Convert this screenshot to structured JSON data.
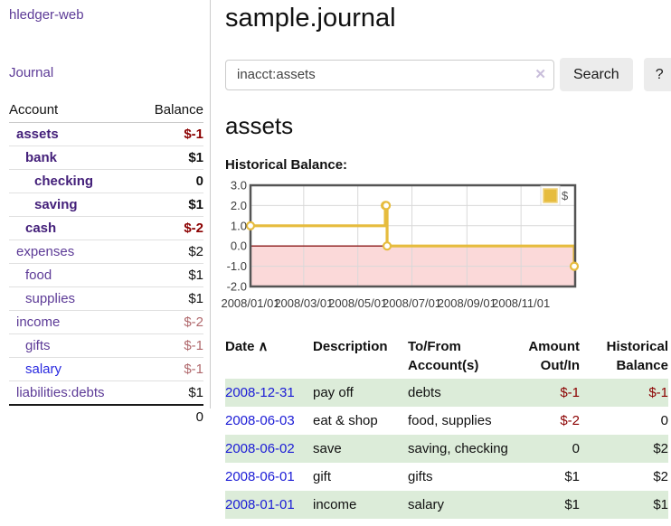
{
  "app": {
    "brand": "hledger-web",
    "nav_journal": "Journal"
  },
  "sidebar": {
    "columns": {
      "account": "Account",
      "balance": "Balance"
    },
    "accounts": [
      {
        "name": "assets",
        "indent": 0,
        "bold": true,
        "blue": false,
        "balance": "$-1",
        "balance_style": "bold-neg"
      },
      {
        "name": "bank",
        "indent": 1,
        "bold": true,
        "blue": false,
        "balance": "$1",
        "balance_style": "bold"
      },
      {
        "name": "checking",
        "indent": 2,
        "bold": true,
        "blue": false,
        "balance": "0",
        "balance_style": "bold"
      },
      {
        "name": "saving",
        "indent": 2,
        "bold": true,
        "blue": false,
        "balance": "$1",
        "balance_style": "bold"
      },
      {
        "name": "cash",
        "indent": 1,
        "bold": true,
        "blue": false,
        "balance": "$-2",
        "balance_style": "bold-neg"
      },
      {
        "name": "expenses",
        "indent": 0,
        "bold": false,
        "blue": false,
        "balance": "$2",
        "balance_style": "plain"
      },
      {
        "name": "food",
        "indent": 1,
        "bold": false,
        "blue": false,
        "balance": "$1",
        "balance_style": "plain"
      },
      {
        "name": "supplies",
        "indent": 1,
        "bold": false,
        "blue": false,
        "balance": "$1",
        "balance_style": "plain"
      },
      {
        "name": "income",
        "indent": 0,
        "bold": false,
        "blue": false,
        "balance": "$-2",
        "balance_style": "muted-neg"
      },
      {
        "name": "gifts",
        "indent": 1,
        "bold": false,
        "blue": false,
        "balance": "$-1",
        "balance_style": "muted-neg"
      },
      {
        "name": "salary",
        "indent": 1,
        "bold": false,
        "blue": true,
        "balance": "$-1",
        "balance_style": "muted-neg"
      },
      {
        "name": "liabilities:debts",
        "indent": 0,
        "bold": false,
        "blue": false,
        "balance": "$1",
        "balance_style": "plain"
      }
    ],
    "total": "0"
  },
  "header": {
    "title": "sample.journal"
  },
  "search": {
    "value": "inacct:assets",
    "clear_icon": "✕",
    "button_label": "Search",
    "help_label": "?"
  },
  "account_page": {
    "heading": "assets",
    "chart_label": "Historical Balance:"
  },
  "chart_data": {
    "type": "line",
    "title": "Historical Balance:",
    "series": [
      {
        "name": "$",
        "color": "#e6bc3e",
        "points": [
          [
            "2008-01-01",
            1
          ],
          [
            "2008-06-01",
            2
          ],
          [
            "2008-06-02",
            2
          ],
          [
            "2008-06-03",
            0
          ],
          [
            "2008-12-31",
            -1
          ]
        ]
      }
    ],
    "steps": true,
    "x_ticks": [
      "2008/01/01",
      "2008/03/01",
      "2008/05/01",
      "2008/07/01",
      "2008/09/01",
      "2008/11/01"
    ],
    "y_ticks": [
      3.0,
      2.0,
      1.0,
      0.0,
      -1.0,
      -2.0
    ],
    "xlim": [
      "2008/01/01",
      "2009/01/01"
    ],
    "ylim": [
      -2,
      3
    ],
    "grid": true,
    "negative_region_color": "#fbd9d9",
    "zero_line_color": "#8b1a1a",
    "legend": {
      "label": "$",
      "position": "top-right"
    }
  },
  "register": {
    "headers": {
      "date": "Date",
      "sort_icon": "∧",
      "description": "Description",
      "accounts": "To/From Account(s)",
      "amount": "Amount Out/In",
      "balance": "Historical Balance"
    },
    "rows": [
      {
        "date": "2008-12-31",
        "description": "pay off",
        "accounts": "debts",
        "amount": "$-1",
        "amount_neg": true,
        "balance": "$-1",
        "balance_neg": true
      },
      {
        "date": "2008-06-03",
        "description": "eat & shop",
        "accounts": "food, supplies",
        "amount": "$-2",
        "amount_neg": true,
        "balance": "0",
        "balance_neg": false
      },
      {
        "date": "2008-06-02",
        "description": "save",
        "accounts": "saving, checking",
        "amount": "0",
        "amount_neg": false,
        "balance": "$2",
        "balance_neg": false
      },
      {
        "date": "2008-06-01",
        "description": "gift",
        "accounts": "gifts",
        "amount": "$1",
        "amount_neg": false,
        "balance": "$2",
        "balance_neg": false
      },
      {
        "date": "2008-01-01",
        "description": "income",
        "accounts": "salary",
        "amount": "$1",
        "amount_neg": false,
        "balance": "$1",
        "balance_neg": false
      }
    ]
  }
}
